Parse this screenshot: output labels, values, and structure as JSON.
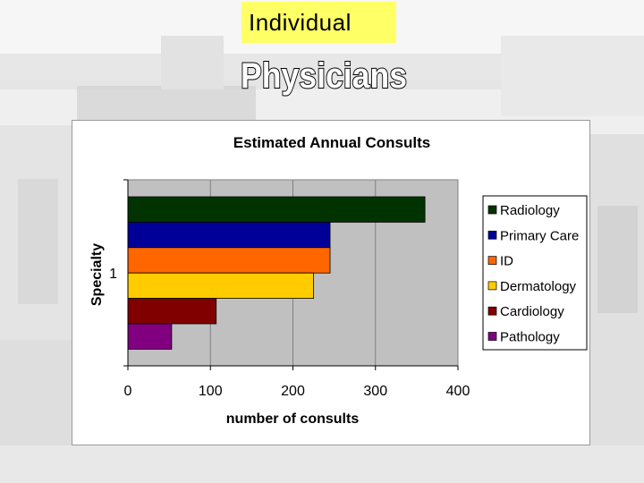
{
  "header": {
    "label": "Individual",
    "title": "Physicians"
  },
  "colors": {
    "label_bg": "#ffff66",
    "plot_bg": "#c0c0c0"
  },
  "chart_data": {
    "type": "bar",
    "orientation": "horizontal",
    "title": "Estimated Annual Consults",
    "xlabel": "number of consults",
    "ylabel": "Specialty",
    "categories": [
      "1"
    ],
    "xlim": [
      0,
      400
    ],
    "xticks": [
      0,
      100,
      200,
      300,
      400
    ],
    "grid": true,
    "legend_position": "right",
    "series": [
      {
        "name": "Radiology",
        "values": [
          360
        ],
        "color": "#003300"
      },
      {
        "name": "Primary Care",
        "values": [
          245
        ],
        "color": "#000099"
      },
      {
        "name": "ID",
        "values": [
          245
        ],
        "color": "#ff6600"
      },
      {
        "name": "Dermatology",
        "values": [
          225
        ],
        "color": "#ffcc00"
      },
      {
        "name": "Cardiology",
        "values": [
          107
        ],
        "color": "#800000"
      },
      {
        "name": "Pathology",
        "values": [
          53
        ],
        "color": "#800080"
      }
    ]
  }
}
